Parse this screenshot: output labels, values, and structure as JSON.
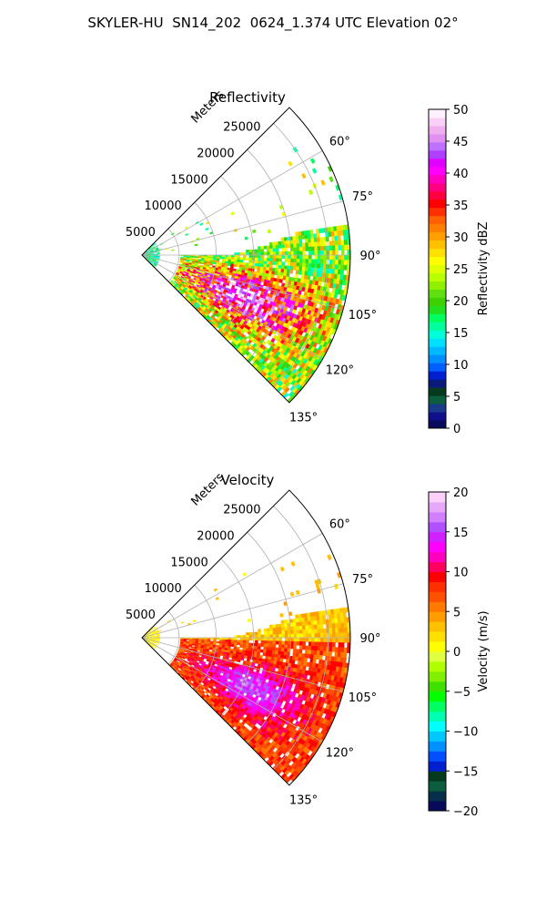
{
  "title": "SKYLER-HU  SN14_202  0624_1.374 UTC Elevation 02°",
  "chart_data": [
    {
      "type": "heatmap",
      "title": "Reflectivity",
      "range_label": "Meters",
      "range_ticks": [
        "5000",
        "10000",
        "15000",
        "20000",
        "25000"
      ],
      "range_values": [
        5000,
        10000,
        15000,
        20000,
        25000
      ],
      "rmax": 28000,
      "azimuth_ticks": [
        "60°",
        "75°",
        "90°",
        "105°",
        "120°",
        "135°"
      ],
      "azimuth_values": [
        60,
        75,
        90,
        105,
        120,
        135
      ],
      "azimuth_range": [
        45,
        135
      ],
      "grid": true,
      "colorbar": {
        "label": "Reflectivity dBZ",
        "ticks": [
          "0",
          "5",
          "10",
          "15",
          "20",
          "25",
          "30",
          "35",
          "40",
          "45",
          "50"
        ],
        "vmin": 0,
        "vmax": 50,
        "colors": [
          "#0a0a5a",
          "#10108c",
          "#1a3a8a",
          "#0c5e3e",
          "#063a1e",
          "#0a1a7a",
          "#0020d0",
          "#0060ff",
          "#0090ff",
          "#00b8ff",
          "#00e0ff",
          "#00ffd8",
          "#00ff9c",
          "#00ff60",
          "#20e020",
          "#40d000",
          "#60e010",
          "#90f000",
          "#b8ff00",
          "#e0ff00",
          "#ffff00",
          "#ffe000",
          "#ffc000",
          "#ffa000",
          "#ff8000",
          "#ff6000",
          "#ff3000",
          "#ff0000",
          "#ff0040",
          "#ff0080",
          "#ff00c0",
          "#ff00ff",
          "#e000ff",
          "#b040ff",
          "#c070ff",
          "#e090f0",
          "#f0b0f0",
          "#f8d0f8",
          "#fff0ff"
        ],
        "palette_name": "radar-reflectivity"
      },
      "echo_summary": "strong echo 25-45 dBZ in SE sector, scattered weak echo to NE"
    },
    {
      "type": "heatmap",
      "title": "Velocity",
      "range_label": "Meters",
      "range_ticks": [
        "5000",
        "10000",
        "15000",
        "20000",
        "25000"
      ],
      "range_values": [
        5000,
        10000,
        15000,
        20000,
        25000
      ],
      "rmax": 28000,
      "azimuth_ticks": [
        "60°",
        "75°",
        "90°",
        "105°",
        "120°",
        "135°"
      ],
      "azimuth_values": [
        60,
        75,
        90,
        105,
        120,
        135
      ],
      "azimuth_range": [
        45,
        135
      ],
      "grid": true,
      "colorbar": {
        "label": "Velocity (m/s)",
        "ticks": [
          "−20",
          "−15",
          "−10",
          "−5",
          "0",
          "5",
          "10",
          "15",
          "20"
        ],
        "vmin": -20,
        "vmax": 20,
        "colors": [
          "#0a0a5a",
          "#06304a",
          "#0c5e3e",
          "#063a1e",
          "#0020d0",
          "#0050ff",
          "#0090ff",
          "#00c8ff",
          "#00ffff",
          "#00ffb0",
          "#00ff60",
          "#00ff00",
          "#40e000",
          "#80f000",
          "#b0ff00",
          "#e0ff40",
          "#ffff00",
          "#ffe000",
          "#ffc000",
          "#ff9c00",
          "#ff7800",
          "#ff5000",
          "#ff3000",
          "#ff0000",
          "#ff0060",
          "#ff00c0",
          "#ff00ff",
          "#d020ff",
          "#b050ff",
          "#d080ff",
          "#e8a8f8",
          "#f8d0f8"
        ],
        "palette_name": "radar-velocity"
      },
      "echo_summary": "outbound 0-15 m/s across SE sector, near-zero along 90° axis"
    }
  ]
}
